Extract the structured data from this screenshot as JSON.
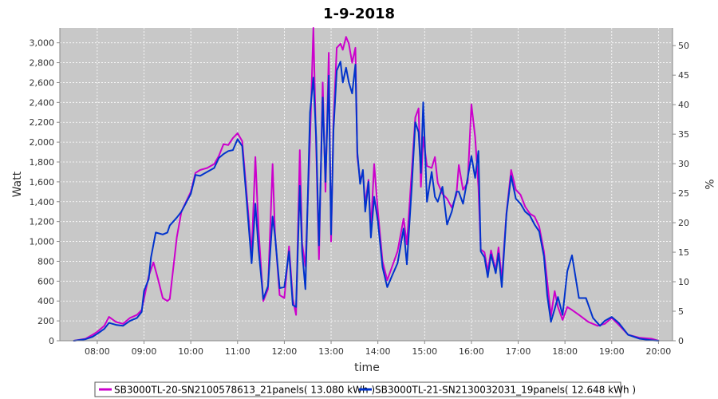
{
  "chart_data": {
    "type": "line",
    "title": "1-9-2018",
    "xlabel": "time",
    "ylabel": "Watt",
    "y2label": "%",
    "xlim": [
      7.2,
      20.3
    ],
    "ylim": [
      0,
      3150
    ],
    "y2lim": [
      0,
      53
    ],
    "x_ticks": [
      8,
      9,
      10,
      11,
      12,
      13,
      14,
      15,
      16,
      17,
      18,
      19,
      20
    ],
    "x_tick_labels": [
      "08:00",
      "09:00",
      "10:00",
      "11:00",
      "12:00",
      "13:00",
      "14:00",
      "15:00",
      "16:00",
      "17:00",
      "18:00",
      "19:00",
      "20:00"
    ],
    "y_ticks": [
      0,
      200,
      400,
      600,
      800,
      1000,
      1200,
      1400,
      1600,
      1800,
      2000,
      2200,
      2400,
      2600,
      2800,
      3000
    ],
    "y_tick_labels": [
      "0",
      "200",
      "400",
      "600",
      "800",
      "1,000",
      "1,200",
      "1,400",
      "1,600",
      "1,800",
      "2,000",
      "2,200",
      "2,400",
      "2,600",
      "2,800",
      "3,000"
    ],
    "y2_ticks": [
      0,
      5,
      10,
      15,
      20,
      25,
      30,
      35,
      40,
      45,
      50
    ],
    "grid": true,
    "legend_position": "bottom",
    "background_color": "#c8c8c8",
    "series": [
      {
        "name": "SB3000TL-20-SN2100578613_21panels( 13.080 kWh )",
        "color": "#cc00cc",
        "points": [
          [
            7.5,
            0
          ],
          [
            7.75,
            20
          ],
          [
            7.9,
            60
          ],
          [
            8.0,
            90
          ],
          [
            8.15,
            150
          ],
          [
            8.25,
            240
          ],
          [
            8.4,
            190
          ],
          [
            8.55,
            170
          ],
          [
            8.7,
            230
          ],
          [
            8.85,
            260
          ],
          [
            8.95,
            310
          ],
          [
            9.1,
            650
          ],
          [
            9.2,
            790
          ],
          [
            9.3,
            620
          ],
          [
            9.4,
            430
          ],
          [
            9.5,
            400
          ],
          [
            9.55,
            420
          ],
          [
            9.7,
            1040
          ],
          [
            9.8,
            1300
          ],
          [
            10.0,
            1500
          ],
          [
            10.1,
            1690
          ],
          [
            10.2,
            1720
          ],
          [
            10.35,
            1740
          ],
          [
            10.5,
            1780
          ],
          [
            10.6,
            1860
          ],
          [
            10.7,
            1980
          ],
          [
            10.8,
            1970
          ],
          [
            10.9,
            2040
          ],
          [
            11.0,
            2090
          ],
          [
            11.1,
            2010
          ],
          [
            11.2,
            1450
          ],
          [
            11.3,
            870
          ],
          [
            11.38,
            1850
          ],
          [
            11.45,
            1100
          ],
          [
            11.55,
            400
          ],
          [
            11.65,
            520
          ],
          [
            11.75,
            1780
          ],
          [
            11.8,
            1080
          ],
          [
            11.9,
            460
          ],
          [
            12.0,
            430
          ],
          [
            12.1,
            950
          ],
          [
            12.18,
            420
          ],
          [
            12.25,
            260
          ],
          [
            12.33,
            1920
          ],
          [
            12.38,
            980
          ],
          [
            12.45,
            750
          ],
          [
            12.55,
            2020
          ],
          [
            12.62,
            3160
          ],
          [
            12.68,
            1950
          ],
          [
            12.74,
            820
          ],
          [
            12.82,
            2600
          ],
          [
            12.88,
            1500
          ],
          [
            12.95,
            2900
          ],
          [
            13.0,
            1000
          ],
          [
            13.05,
            2200
          ],
          [
            13.12,
            2950
          ],
          [
            13.2,
            2990
          ],
          [
            13.25,
            2930
          ],
          [
            13.32,
            3060
          ],
          [
            13.38,
            2990
          ],
          [
            13.45,
            2800
          ],
          [
            13.52,
            2950
          ],
          [
            13.56,
            1850
          ],
          [
            13.62,
            1620
          ],
          [
            13.68,
            1690
          ],
          [
            13.73,
            1380
          ],
          [
            13.8,
            1620
          ],
          [
            13.85,
            1120
          ],
          [
            13.92,
            1780
          ],
          [
            14.0,
            1300
          ],
          [
            14.1,
            800
          ],
          [
            14.2,
            610
          ],
          [
            14.3,
            740
          ],
          [
            14.42,
            900
          ],
          [
            14.55,
            1230
          ],
          [
            14.62,
            970
          ],
          [
            14.72,
            1680
          ],
          [
            14.8,
            2250
          ],
          [
            14.87,
            2340
          ],
          [
            14.92,
            1550
          ],
          [
            14.97,
            2050
          ],
          [
            15.05,
            1760
          ],
          [
            15.15,
            1740
          ],
          [
            15.22,
            1850
          ],
          [
            15.28,
            1590
          ],
          [
            15.38,
            1480
          ],
          [
            15.48,
            1430
          ],
          [
            15.58,
            1340
          ],
          [
            15.68,
            1470
          ],
          [
            15.73,
            1770
          ],
          [
            15.82,
            1520
          ],
          [
            15.92,
            1590
          ],
          [
            16.0,
            2380
          ],
          [
            16.08,
            2050
          ],
          [
            16.15,
            1550
          ],
          [
            16.2,
            920
          ],
          [
            16.28,
            890
          ],
          [
            16.35,
            700
          ],
          [
            16.42,
            910
          ],
          [
            16.52,
            710
          ],
          [
            16.58,
            940
          ],
          [
            16.65,
            620
          ],
          [
            16.75,
            1290
          ],
          [
            16.85,
            1720
          ],
          [
            16.95,
            1520
          ],
          [
            17.05,
            1470
          ],
          [
            17.15,
            1350
          ],
          [
            17.25,
            1280
          ],
          [
            17.35,
            1250
          ],
          [
            17.45,
            1150
          ],
          [
            17.55,
            900
          ],
          [
            17.62,
            600
          ],
          [
            17.7,
            250
          ],
          [
            17.78,
            500
          ],
          [
            17.85,
            340
          ],
          [
            17.95,
            210
          ],
          [
            18.05,
            340
          ],
          [
            18.15,
            310
          ],
          [
            18.3,
            260
          ],
          [
            18.5,
            190
          ],
          [
            18.7,
            150
          ],
          [
            18.85,
            170
          ],
          [
            19.0,
            230
          ],
          [
            19.15,
            160
          ],
          [
            19.35,
            60
          ],
          [
            19.6,
            30
          ],
          [
            19.85,
            20
          ],
          [
            20.0,
            0
          ]
        ]
      },
      {
        "name": "SB3000TL-21-SN2130032031_19panels( 12.648 kWh )",
        "color": "#0033cc",
        "points": [
          [
            7.5,
            0
          ],
          [
            7.75,
            15
          ],
          [
            7.9,
            40
          ],
          [
            8.0,
            70
          ],
          [
            8.15,
            120
          ],
          [
            8.25,
            180
          ],
          [
            8.4,
            160
          ],
          [
            8.55,
            150
          ],
          [
            8.7,
            200
          ],
          [
            8.85,
            230
          ],
          [
            8.95,
            290
          ],
          [
            9.0,
            500
          ],
          [
            9.1,
            620
          ],
          [
            9.15,
            840
          ],
          [
            9.25,
            1090
          ],
          [
            9.4,
            1070
          ],
          [
            9.5,
            1090
          ],
          [
            9.55,
            1160
          ],
          [
            9.7,
            1240
          ],
          [
            9.8,
            1300
          ],
          [
            10.0,
            1480
          ],
          [
            10.1,
            1670
          ],
          [
            10.2,
            1660
          ],
          [
            10.35,
            1700
          ],
          [
            10.5,
            1740
          ],
          [
            10.6,
            1840
          ],
          [
            10.7,
            1880
          ],
          [
            10.8,
            1910
          ],
          [
            10.9,
            1920
          ],
          [
            11.0,
            2030
          ],
          [
            11.1,
            1960
          ],
          [
            11.2,
            1380
          ],
          [
            11.3,
            780
          ],
          [
            11.38,
            1380
          ],
          [
            11.45,
            910
          ],
          [
            11.55,
            420
          ],
          [
            11.65,
            550
          ],
          [
            11.75,
            1250
          ],
          [
            11.8,
            1060
          ],
          [
            11.9,
            530
          ],
          [
            12.0,
            540
          ],
          [
            12.1,
            900
          ],
          [
            12.18,
            360
          ],
          [
            12.25,
            340
          ],
          [
            12.33,
            1560
          ],
          [
            12.38,
            900
          ],
          [
            12.45,
            520
          ],
          [
            12.55,
            2300
          ],
          [
            12.62,
            2650
          ],
          [
            12.68,
            2050
          ],
          [
            12.74,
            960
          ],
          [
            12.82,
            2450
          ],
          [
            12.88,
            1600
          ],
          [
            12.95,
            2670
          ],
          [
            13.0,
            1070
          ],
          [
            13.05,
            2120
          ],
          [
            13.12,
            2720
          ],
          [
            13.2,
            2810
          ],
          [
            13.25,
            2600
          ],
          [
            13.32,
            2750
          ],
          [
            13.38,
            2600
          ],
          [
            13.45,
            2490
          ],
          [
            13.52,
            2780
          ],
          [
            13.56,
            1900
          ],
          [
            13.62,
            1580
          ],
          [
            13.68,
            1720
          ],
          [
            13.73,
            1300
          ],
          [
            13.8,
            1600
          ],
          [
            13.85,
            1040
          ],
          [
            13.92,
            1450
          ],
          [
            14.0,
            1200
          ],
          [
            14.1,
            740
          ],
          [
            14.2,
            540
          ],
          [
            14.3,
            650
          ],
          [
            14.42,
            780
          ],
          [
            14.55,
            1130
          ],
          [
            14.62,
            770
          ],
          [
            14.72,
            1520
          ],
          [
            14.8,
            2200
          ],
          [
            14.87,
            2100
          ],
          [
            14.92,
            1690
          ],
          [
            14.97,
            2400
          ],
          [
            15.05,
            1400
          ],
          [
            15.15,
            1700
          ],
          [
            15.22,
            1450
          ],
          [
            15.28,
            1400
          ],
          [
            15.38,
            1550
          ],
          [
            15.48,
            1170
          ],
          [
            15.58,
            1300
          ],
          [
            15.68,
            1500
          ],
          [
            15.73,
            1500
          ],
          [
            15.82,
            1380
          ],
          [
            15.92,
            1640
          ],
          [
            16.0,
            1860
          ],
          [
            16.08,
            1640
          ],
          [
            16.15,
            1910
          ],
          [
            16.2,
            900
          ],
          [
            16.28,
            840
          ],
          [
            16.35,
            640
          ],
          [
            16.42,
            870
          ],
          [
            16.52,
            680
          ],
          [
            16.58,
            880
          ],
          [
            16.65,
            540
          ],
          [
            16.75,
            1280
          ],
          [
            16.85,
            1660
          ],
          [
            16.95,
            1430
          ],
          [
            17.05,
            1380
          ],
          [
            17.15,
            1300
          ],
          [
            17.25,
            1260
          ],
          [
            17.35,
            1170
          ],
          [
            17.45,
            1100
          ],
          [
            17.55,
            850
          ],
          [
            17.62,
            460
          ],
          [
            17.7,
            190
          ],
          [
            17.78,
            320
          ],
          [
            17.85,
            440
          ],
          [
            17.95,
            260
          ],
          [
            18.05,
            700
          ],
          [
            18.15,
            860
          ],
          [
            18.3,
            430
          ],
          [
            18.45,
            430
          ],
          [
            18.6,
            230
          ],
          [
            18.75,
            150
          ],
          [
            18.85,
            200
          ],
          [
            19.0,
            240
          ],
          [
            19.15,
            180
          ],
          [
            19.35,
            60
          ],
          [
            19.6,
            20
          ],
          [
            19.85,
            5
          ],
          [
            20.0,
            0
          ]
        ]
      }
    ]
  }
}
